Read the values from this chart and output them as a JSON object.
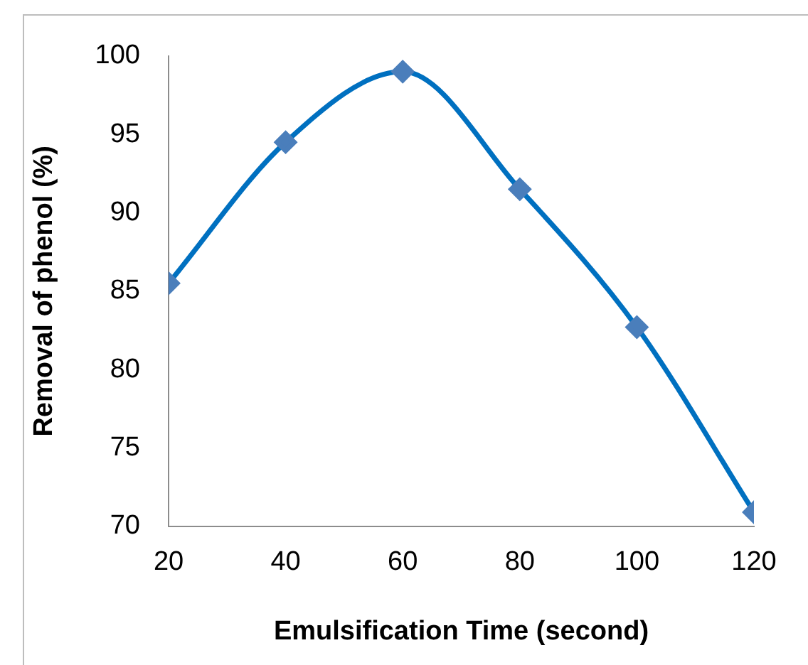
{
  "chart_data": {
    "type": "line",
    "xlabel": "Emulsification Time (second)",
    "ylabel": "Removal of phenol (%)",
    "x": [
      20,
      40,
      60,
      80,
      100,
      120
    ],
    "series": [
      {
        "color": "#0070c0",
        "values": [
          85.5,
          94.5,
          99,
          91.5,
          82.7,
          70.9
        ]
      }
    ],
    "xlim": [
      20,
      120
    ],
    "xticks": [
      20,
      40,
      60,
      80,
      100,
      120
    ],
    "ylim": [
      70,
      100
    ],
    "yticks": [
      70,
      75,
      80,
      85,
      90,
      95,
      100
    ],
    "grid": false,
    "legend": false,
    "marker": "diamond",
    "line_style": "solid"
  }
}
